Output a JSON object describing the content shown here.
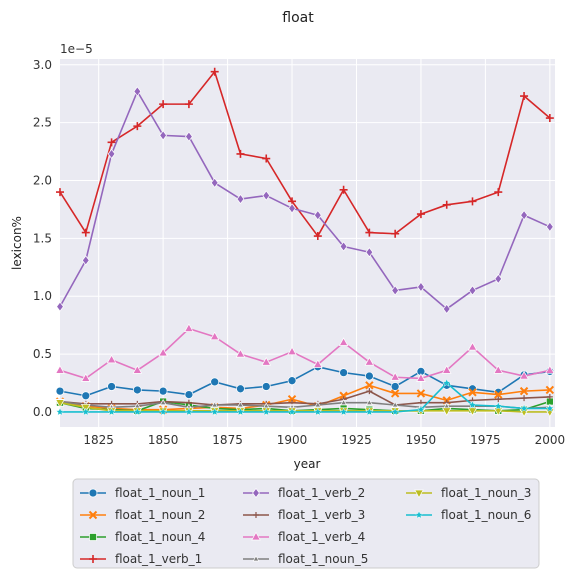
{
  "chart_data": {
    "type": "line",
    "title": "float",
    "xlabel": "year",
    "ylabel": "lexicon%",
    "y_scale_label": "1e−5",
    "xlim": [
      1810,
      2002
    ],
    "ylim": [
      -0.13,
      3.05
    ],
    "x_ticks": [
      "1825",
      "1850",
      "1875",
      "1900",
      "1925",
      "1950",
      "1975",
      "2000"
    ],
    "y_ticks": [
      "0.0",
      "0.5",
      "1.0",
      "1.5",
      "2.0",
      "2.5",
      "3.0"
    ],
    "grid": true,
    "legend_position": "bottom",
    "x": [
      1810,
      1820,
      1830,
      1840,
      1850,
      1860,
      1870,
      1880,
      1890,
      1900,
      1910,
      1920,
      1930,
      1940,
      1950,
      1960,
      1970,
      1980,
      1990,
      2000
    ],
    "series": [
      {
        "name": "float_1_noun_1",
        "color": "#1f77b4",
        "marker": "circle",
        "values": [
          0.18,
          0.14,
          0.22,
          0.19,
          0.18,
          0.15,
          0.26,
          0.2,
          0.22,
          0.27,
          0.39,
          0.34,
          0.31,
          0.22,
          0.35,
          0.23,
          0.2,
          0.17,
          0.32,
          0.35
        ]
      },
      {
        "name": "float_1_noun_2",
        "color": "#ff7f0e",
        "marker": "x",
        "values": [
          0.09,
          0.05,
          0.03,
          0.02,
          0.02,
          0.03,
          0.04,
          0.03,
          0.06,
          0.11,
          0.05,
          0.14,
          0.23,
          0.16,
          0.16,
          0.1,
          0.17,
          0.15,
          0.18,
          0.19
        ]
      },
      {
        "name": "float_1_noun_4",
        "color": "#2ca02c",
        "marker": "square",
        "values": [
          0.08,
          0.03,
          0.02,
          0.01,
          0.09,
          0.06,
          0.03,
          0.02,
          0.03,
          0.01,
          0.02,
          0.03,
          0.02,
          0.01,
          0.01,
          0.03,
          0.02,
          0.01,
          0.02,
          0.09
        ]
      },
      {
        "name": "float_1_verb_1",
        "color": "#d62728",
        "marker": "plus",
        "values": [
          1.9,
          1.55,
          2.33,
          2.47,
          2.66,
          2.66,
          2.94,
          2.23,
          2.19,
          1.82,
          1.52,
          1.92,
          1.55,
          1.54,
          1.71,
          1.79,
          1.82,
          1.9,
          2.73,
          2.54
        ]
      },
      {
        "name": "float_1_verb_2",
        "color": "#9467bd",
        "marker": "diamond",
        "values": [
          0.91,
          1.31,
          2.23,
          2.77,
          2.39,
          2.38,
          1.98,
          1.84,
          1.87,
          1.76,
          1.7,
          1.43,
          1.38,
          1.05,
          1.08,
          0.89,
          1.05,
          1.15,
          1.7,
          1.6
        ]
      },
      {
        "name": "float_1_verb_3",
        "color": "#8c564b",
        "marker": "thin-plus",
        "values": [
          0.09,
          0.07,
          0.07,
          0.07,
          0.09,
          0.08,
          0.06,
          0.07,
          0.07,
          0.08,
          0.07,
          0.11,
          0.18,
          0.06,
          0.08,
          0.08,
          0.1,
          0.11,
          0.12,
          0.13
        ]
      },
      {
        "name": "float_1_verb_4",
        "color": "#e377c2",
        "marker": "triangle-up",
        "values": [
          0.36,
          0.29,
          0.45,
          0.36,
          0.51,
          0.72,
          0.65,
          0.5,
          0.43,
          0.52,
          0.41,
          0.6,
          0.43,
          0.3,
          0.29,
          0.36,
          0.56,
          0.36,
          0.31,
          0.36
        ]
      },
      {
        "name": "float_1_noun_5",
        "color": "#7f7f7f",
        "marker": "triangle-up-small",
        "values": [
          0.09,
          0.06,
          0.04,
          0.05,
          0.08,
          0.04,
          0.06,
          0.06,
          0.05,
          0.04,
          0.06,
          0.08,
          0.08,
          0.06,
          0.04,
          0.05,
          0.05,
          0.05,
          0.03,
          0.04
        ]
      },
      {
        "name": "float_1_noun_3",
        "color": "#bcbd22",
        "marker": "triangle-down",
        "values": [
          0.08,
          0.04,
          0.01,
          0.01,
          0.01,
          0.01,
          0.01,
          0.01,
          0.01,
          0.01,
          0.01,
          0.01,
          0.01,
          0.01,
          0.01,
          0.01,
          0.01,
          0.01,
          0.0,
          0.0
        ]
      },
      {
        "name": "float_1_noun_6",
        "color": "#17becf",
        "marker": "star",
        "values": [
          0.0,
          0.0,
          0.0,
          0.0,
          0.0,
          0.0,
          0.0,
          0.0,
          0.0,
          0.0,
          0.0,
          0.0,
          0.0,
          0.0,
          0.02,
          0.25,
          0.06,
          0.05,
          0.03,
          0.03
        ]
      }
    ]
  }
}
